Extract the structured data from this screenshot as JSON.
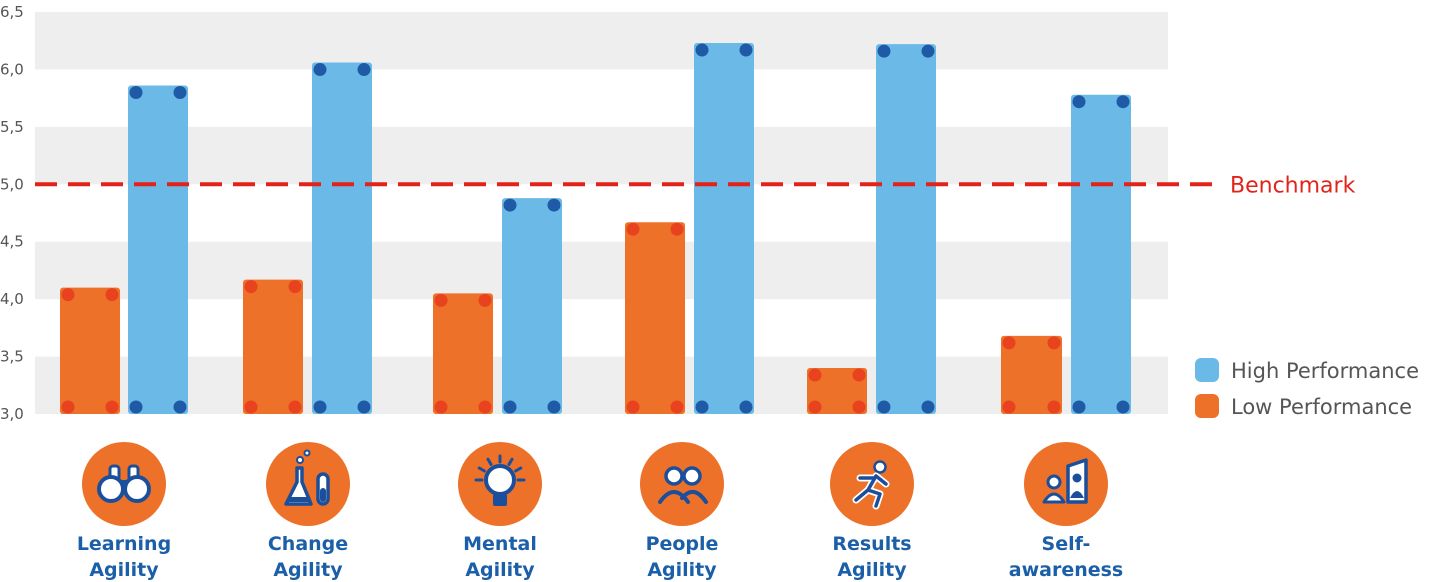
{
  "colors": {
    "high": "#6bb9e6",
    "high_dot": "#1f5aa6",
    "low": "#ed7129",
    "low_dot": "#e8421f",
    "benchmark": "#e2231a",
    "band": "#eeeeee",
    "icon_circle": "#ed7129",
    "icon_fg": "#1b4f9c",
    "label": "#1b5fa8"
  },
  "chart_data": {
    "type": "bar",
    "categories": [
      "Learning Agility",
      "Change Agility",
      "Mental Agility",
      "People Agility",
      "Results Agility",
      "Self-awareness"
    ],
    "category_label_lines": [
      [
        "Learning",
        "Agility"
      ],
      [
        "Change",
        "Agility"
      ],
      [
        "Mental",
        "Agility"
      ],
      [
        "People",
        "Agility"
      ],
      [
        "Results",
        "Agility"
      ],
      [
        "Self-",
        "awareness"
      ]
    ],
    "series": [
      {
        "name": "Low Performance",
        "values": [
          4.1,
          4.17,
          4.05,
          4.67,
          3.4,
          3.68
        ]
      },
      {
        "name": "High Performance",
        "values": [
          5.86,
          6.06,
          4.88,
          6.23,
          6.22,
          5.78
        ]
      }
    ],
    "benchmark": {
      "label": "Benchmark",
      "value": 5.0
    },
    "yticks": [
      "3,0",
      "3,5",
      "4,0",
      "4,5",
      "5,0",
      "5,5",
      "6,0",
      "6,5"
    ],
    "ytick_values": [
      3.0,
      3.5,
      4.0,
      4.5,
      5.0,
      5.5,
      6.0,
      6.5
    ],
    "ylim": [
      3.0,
      6.5
    ],
    "grid": "alternating horizontal bands",
    "legend": {
      "placement": "right",
      "entries": [
        "High Performance",
        "Low Performance"
      ]
    },
    "icons": [
      "binoculars-icon",
      "flask-icon",
      "lightbulb-icon",
      "people-icon",
      "running-person-icon",
      "mirror-person-icon"
    ]
  }
}
